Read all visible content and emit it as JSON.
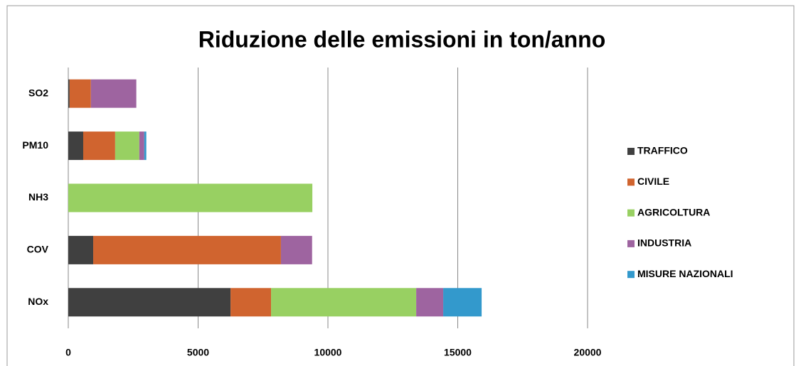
{
  "chart_data": {
    "type": "stacked-bar-horizontal",
    "title": "Riduzione delle emissioni in ton/anno",
    "categories": [
      "SO2",
      "PM10",
      "NH3",
      "COV",
      "NOx"
    ],
    "series": [
      {
        "name": "TRAFFICO",
        "color": "#404040",
        "values": [
          50,
          575,
          0,
          960,
          6250
        ]
      },
      {
        "name": "CIVILE",
        "color": "#d0642f",
        "values": [
          820,
          1230,
          0,
          7230,
          1560
        ]
      },
      {
        "name": "AGRICOLTURA",
        "color": "#98d062",
        "values": [
          0,
          930,
          9400,
          0,
          5590
        ]
      },
      {
        "name": "INDUSTRIA",
        "color": "#9e64a0",
        "values": [
          1750,
          190,
          0,
          1200,
          1040
        ]
      },
      {
        "name": "MISURE NAZIONALI",
        "color": "#3399cc",
        "values": [
          0,
          80,
          0,
          0,
          1480
        ]
      }
    ],
    "xlim": [
      0,
      20000
    ],
    "xticks": [
      0,
      5000,
      10000,
      15000,
      20000
    ],
    "grid": true,
    "legend": "right"
  }
}
